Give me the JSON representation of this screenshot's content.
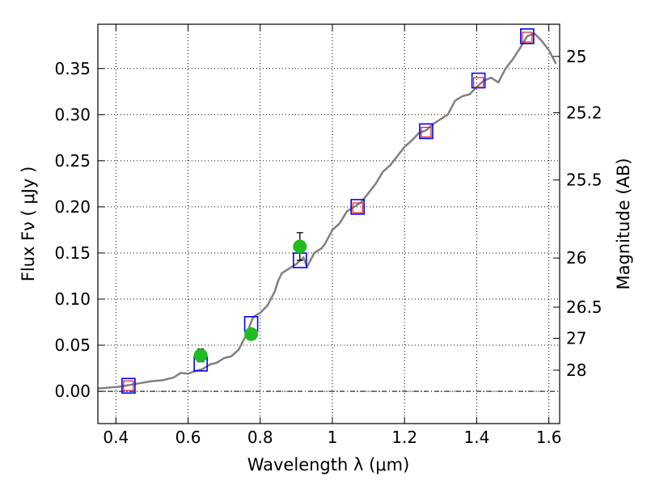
{
  "chart_data": {
    "type": "scatter",
    "xlabel": "Wavelength  λ (μm)",
    "ylabel": "Flux  Fν  ( μJy )",
    "y2label": "Magnitude (AB)",
    "xlim": [
      0.35,
      1.63
    ],
    "ylim": [
      -0.035,
      0.398
    ],
    "grid": true,
    "x_ticks": [
      {
        "value": 0.4,
        "label": "0.4"
      },
      {
        "value": 0.6,
        "label": "0.6"
      },
      {
        "value": 0.8,
        "label": "0.8"
      },
      {
        "value": 1.0,
        "label": "1"
      },
      {
        "value": 1.2,
        "label": "1.2"
      },
      {
        "value": 1.4,
        "label": "1.4"
      },
      {
        "value": 1.6,
        "label": "1.6"
      }
    ],
    "y_ticks": [
      {
        "value": 0.0,
        "label": "0.00"
      },
      {
        "value": 0.05,
        "label": "0.05"
      },
      {
        "value": 0.1,
        "label": "0.10"
      },
      {
        "value": 0.15,
        "label": "0.15"
      },
      {
        "value": 0.2,
        "label": "0.20"
      },
      {
        "value": 0.25,
        "label": "0.25"
      },
      {
        "value": 0.3,
        "label": "0.30"
      },
      {
        "value": 0.35,
        "label": "0.35"
      }
    ],
    "y2_ticks": [
      {
        "flux": 0.3631,
        "label": "25"
      },
      {
        "flux": 0.302,
        "label": "25.2"
      },
      {
        "flux": 0.2291,
        "label": "25.5"
      },
      {
        "flux": 0.1445,
        "label": "26"
      },
      {
        "flux": 0.0912,
        "label": "26.5"
      },
      {
        "flux": 0.0575,
        "label": "27"
      },
      {
        "flux": 0.0229,
        "label": "28"
      }
    ],
    "series": [
      {
        "kind": "line",
        "color": "#808080",
        "points": [
          [
            0.35,
            0.003
          ],
          [
            0.38,
            0.004
          ],
          [
            0.41,
            0.005
          ],
          [
            0.44,
            0.007
          ],
          [
            0.47,
            0.009
          ],
          [
            0.5,
            0.011
          ],
          [
            0.53,
            0.012
          ],
          [
            0.56,
            0.015
          ],
          [
            0.58,
            0.02
          ],
          [
            0.6,
            0.019
          ],
          [
            0.62,
            0.022
          ],
          [
            0.64,
            0.024
          ],
          [
            0.66,
            0.029
          ],
          [
            0.68,
            0.031
          ],
          [
            0.7,
            0.036
          ],
          [
            0.72,
            0.038
          ],
          [
            0.74,
            0.045
          ],
          [
            0.76,
            0.06
          ],
          [
            0.77,
            0.07
          ],
          [
            0.78,
            0.08
          ],
          [
            0.79,
            0.083
          ],
          [
            0.8,
            0.085
          ],
          [
            0.82,
            0.093
          ],
          [
            0.84,
            0.108
          ],
          [
            0.85,
            0.12
          ],
          [
            0.86,
            0.128
          ],
          [
            0.88,
            0.133
          ],
          [
            0.9,
            0.138
          ],
          [
            0.92,
            0.145
          ],
          [
            0.93,
            0.135
          ],
          [
            0.95,
            0.15
          ],
          [
            0.97,
            0.155
          ],
          [
            0.98,
            0.16
          ],
          [
            1.0,
            0.175
          ],
          [
            1.02,
            0.182
          ],
          [
            1.04,
            0.195
          ],
          [
            1.06,
            0.2
          ],
          [
            1.08,
            0.205
          ],
          [
            1.1,
            0.215
          ],
          [
            1.12,
            0.225
          ],
          [
            1.14,
            0.238
          ],
          [
            1.16,
            0.245
          ],
          [
            1.18,
            0.255
          ],
          [
            1.2,
            0.265
          ],
          [
            1.22,
            0.272
          ],
          [
            1.24,
            0.28
          ],
          [
            1.26,
            0.283
          ],
          [
            1.28,
            0.29
          ],
          [
            1.3,
            0.295
          ],
          [
            1.32,
            0.3
          ],
          [
            1.34,
            0.315
          ],
          [
            1.36,
            0.32
          ],
          [
            1.38,
            0.322
          ],
          [
            1.4,
            0.33
          ],
          [
            1.42,
            0.337
          ],
          [
            1.44,
            0.34
          ],
          [
            1.46,
            0.335
          ],
          [
            1.48,
            0.35
          ],
          [
            1.5,
            0.36
          ],
          [
            1.52,
            0.372
          ],
          [
            1.54,
            0.385
          ],
          [
            1.56,
            0.388
          ],
          [
            1.58,
            0.38
          ],
          [
            1.6,
            0.37
          ],
          [
            1.62,
            0.355
          ]
        ]
      },
      {
        "kind": "open-square",
        "color": "#0000ff",
        "points": [
          [
            0.435,
            0.006
          ],
          [
            0.635,
            0.03
          ],
          [
            0.775,
            0.073
          ],
          [
            0.91,
            0.142
          ],
          [
            1.07,
            0.2
          ],
          [
            1.26,
            0.282
          ],
          [
            1.405,
            0.337
          ],
          [
            1.54,
            0.385
          ]
        ]
      },
      {
        "kind": "open-square-small",
        "color": "#e31a1c",
        "points": [
          [
            0.435,
            0.006
          ],
          [
            1.07,
            0.199
          ],
          [
            1.26,
            0.281
          ],
          [
            1.405,
            0.335
          ],
          [
            1.54,
            0.384
          ]
        ]
      },
      {
        "kind": "filled-circle",
        "color": "#22bb22",
        "points": [
          [
            0.635,
            0.039
          ],
          [
            0.775,
            0.062
          ],
          [
            0.91,
            0.157
          ]
        ],
        "errors": [
          0.007,
          0.006,
          0.015
        ]
      }
    ]
  }
}
